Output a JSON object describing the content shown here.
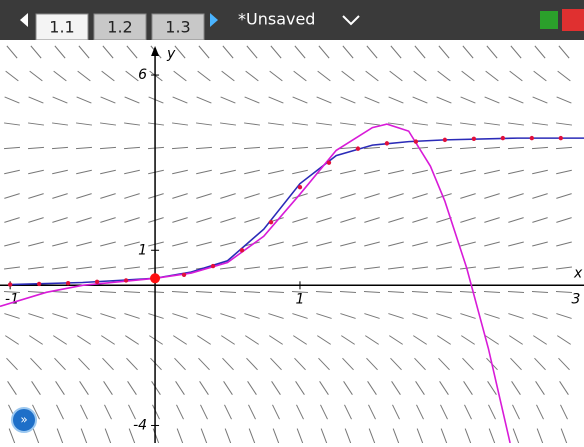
{
  "tabs": [
    "1.1",
    "1.2",
    "1.3"
  ],
  "document": "*Unsaved",
  "chart_data": {
    "type": "line",
    "xlabel": "x",
    "ylabel": "y",
    "xlim": [
      -1.07,
      2.96
    ],
    "ylim": [
      -4.5,
      7
    ],
    "xticks": [
      -1,
      1,
      3
    ],
    "yticks": [
      -4,
      1,
      6
    ],
    "series": [
      {
        "style": "line",
        "color": "#2b2bb8",
        "x": [
          -1,
          -0.5,
          0,
          0.25,
          0.5,
          0.75,
          1,
          1.25,
          1.5,
          1.75,
          2,
          2.5,
          2.96
        ],
        "values": [
          0.02,
          0.08,
          0.2,
          0.38,
          0.7,
          1.6,
          2.9,
          3.7,
          4.0,
          4.1,
          4.15,
          4.2,
          4.2
        ]
      },
      {
        "style": "line",
        "color": "#d81bd8",
        "x": [
          -1.07,
          -0.75,
          -0.5,
          -0.25,
          0,
          0.25,
          0.5,
          0.75,
          1,
          1.25,
          1.5,
          1.6,
          1.75,
          1.9,
          2,
          2.15,
          2.3,
          2.45
        ],
        "values": [
          -0.6,
          -0.2,
          0,
          0.1,
          0.2,
          0.35,
          0.65,
          1.4,
          2.6,
          3.85,
          4.5,
          4.6,
          4.4,
          3.4,
          2.4,
          0.5,
          -1.8,
          -4.5
        ]
      },
      {
        "style": "dots",
        "color": "#e0103c",
        "x": [
          -1,
          -0.8,
          -0.6,
          -0.4,
          -0.2,
          0.2,
          0.4,
          0.6,
          0.8,
          1,
          1.2,
          1.4,
          1.6,
          1.8,
          2,
          2.2,
          2.4,
          2.6,
          2.8
        ],
        "values": [
          0.02,
          0.04,
          0.06,
          0.1,
          0.14,
          0.3,
          0.55,
          1.0,
          1.8,
          2.8,
          3.5,
          3.9,
          4.05,
          4.1,
          4.15,
          4.18,
          4.2,
          4.2,
          4.2
        ]
      }
    ],
    "point": {
      "x": 0,
      "y": 0.2,
      "color": "#ff1010"
    }
  }
}
